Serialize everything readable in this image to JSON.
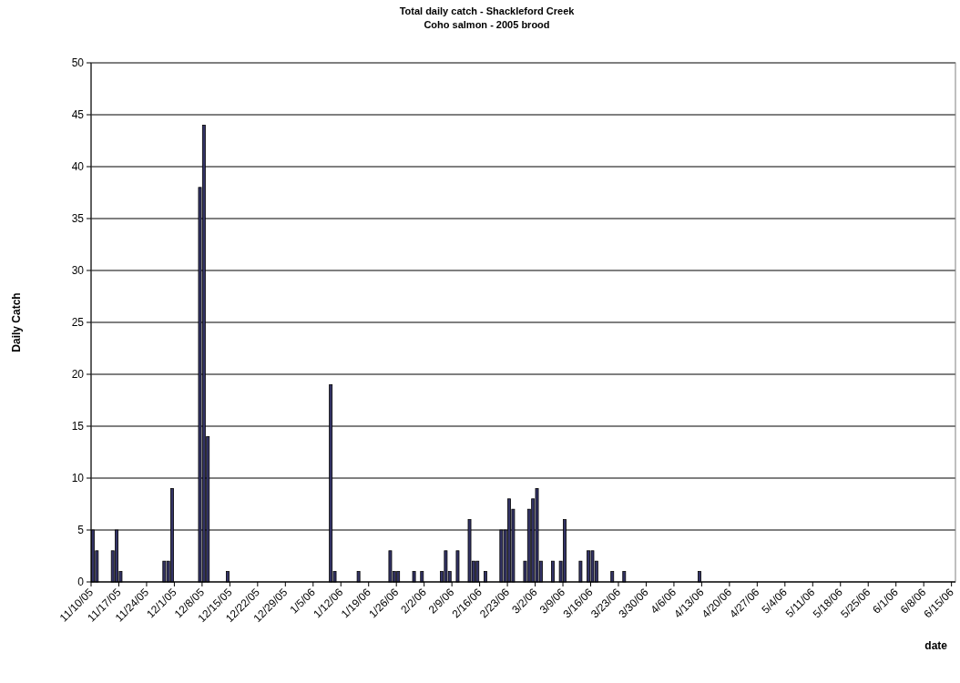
{
  "chart_data": {
    "type": "bar",
    "title": "Total daily catch - Shackleford Creek",
    "subtitle": "Coho salmon - 2005 brood",
    "xlabel": "date",
    "ylabel": "Daily Catch",
    "x": [
      "2005-11-10",
      "2005-11-11",
      "2005-11-15",
      "2005-11-16",
      "2005-11-17",
      "2005-11-28",
      "2005-11-29",
      "2005-11-30",
      "2005-12-07",
      "2005-12-08",
      "2005-12-09",
      "2005-12-14",
      "2006-01-09",
      "2006-01-10",
      "2006-01-16",
      "2006-01-24",
      "2006-01-25",
      "2006-01-26",
      "2006-01-30",
      "2006-02-01",
      "2006-02-06",
      "2006-02-07",
      "2006-02-08",
      "2006-02-10",
      "2006-02-13",
      "2006-02-14",
      "2006-02-15",
      "2006-02-17",
      "2006-02-21",
      "2006-02-22",
      "2006-02-23",
      "2006-02-24",
      "2006-02-27",
      "2006-02-28",
      "2006-03-01",
      "2006-03-02",
      "2006-03-03",
      "2006-03-06",
      "2006-03-08",
      "2006-03-09",
      "2006-03-13",
      "2006-03-15",
      "2006-03-16",
      "2006-03-17",
      "2006-03-21",
      "2006-03-24",
      "2006-04-12"
    ],
    "values": [
      5,
      3,
      3,
      5,
      1,
      2,
      2,
      9,
      38,
      44,
      14,
      1,
      19,
      1,
      1,
      3,
      1,
      1,
      1,
      1,
      1,
      3,
      1,
      3,
      6,
      2,
      2,
      1,
      5,
      5,
      8,
      7,
      2,
      7,
      8,
      9,
      2,
      2,
      2,
      6,
      2,
      3,
      3,
      2,
      1,
      1,
      1
    ],
    "color": "#333366",
    "xlim": [
      "2005-11-10",
      "2006-06-16"
    ],
    "xticks": [
      {
        "value": "2005-11-10",
        "label": "11/10/05"
      },
      {
        "value": "2005-11-17",
        "label": "11/17/05"
      },
      {
        "value": "2005-11-24",
        "label": "11/24/05"
      },
      {
        "value": "2005-12-01",
        "label": "12/1/05"
      },
      {
        "value": "2005-12-08",
        "label": "12/8/05"
      },
      {
        "value": "2005-12-15",
        "label": "12/15/05"
      },
      {
        "value": "2005-12-22",
        "label": "12/22/05"
      },
      {
        "value": "2005-12-29",
        "label": "12/29/05"
      },
      {
        "value": "2006-01-05",
        "label": "1/5/06"
      },
      {
        "value": "2006-01-12",
        "label": "1/12/06"
      },
      {
        "value": "2006-01-19",
        "label": "1/19/06"
      },
      {
        "value": "2006-01-26",
        "label": "1/26/06"
      },
      {
        "value": "2006-02-02",
        "label": "2/2/06"
      },
      {
        "value": "2006-02-09",
        "label": "2/9/06"
      },
      {
        "value": "2006-02-16",
        "label": "2/16/06"
      },
      {
        "value": "2006-02-23",
        "label": "2/23/06"
      },
      {
        "value": "2006-03-02",
        "label": "3/2/06"
      },
      {
        "value": "2006-03-09",
        "label": "3/9/06"
      },
      {
        "value": "2006-03-16",
        "label": "3/16/06"
      },
      {
        "value": "2006-03-23",
        "label": "3/23/06"
      },
      {
        "value": "2006-03-30",
        "label": "3/30/06"
      },
      {
        "value": "2006-04-06",
        "label": "4/6/06"
      },
      {
        "value": "2006-04-13",
        "label": "4/13/06"
      },
      {
        "value": "2006-04-20",
        "label": "4/20/06"
      },
      {
        "value": "2006-04-27",
        "label": "4/27/06"
      },
      {
        "value": "2006-05-04",
        "label": "5/4/06"
      },
      {
        "value": "2006-05-11",
        "label": "5/11/06"
      },
      {
        "value": "2006-05-18",
        "label": "5/18/06"
      },
      {
        "value": "2006-05-25",
        "label": "5/25/06"
      },
      {
        "value": "2006-06-01",
        "label": "6/1/06"
      },
      {
        "value": "2006-06-08",
        "label": "6/8/06"
      },
      {
        "value": "2006-06-15",
        "label": "6/15/06"
      }
    ],
    "ylim": [
      0,
      50
    ],
    "yticks": [
      0,
      5,
      10,
      15,
      20,
      25,
      30,
      35,
      40,
      45,
      50
    ],
    "grid": "y"
  }
}
